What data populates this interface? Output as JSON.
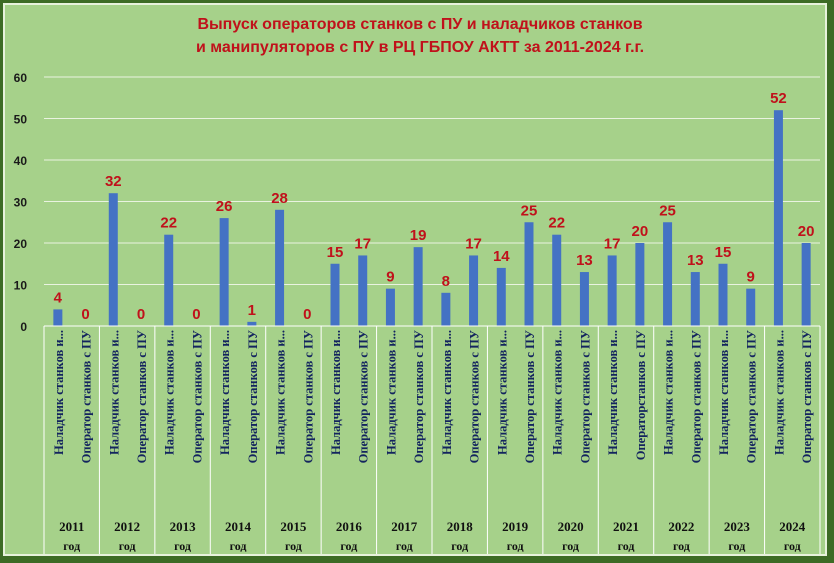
{
  "chart_data": {
    "type": "bar",
    "title_lines": [
      "Выпуск операторов станков с ПУ и наладчиков станков",
      "и манипуляторов с ПУ в РЦ ГБПОУ АКТТ за 2011-2024 г.г."
    ],
    "ylim": [
      0,
      60
    ],
    "yticks": [
      "0",
      "10",
      "20",
      "30",
      "40",
      "50",
      "60"
    ],
    "grid": true,
    "bar_color": "#4472c4",
    "label_color": "#c0111b",
    "categories": [
      "Наладчик станков и...",
      "Оператор станков с ПУ",
      "Наладчик станков и...",
      "Оператор станков с ПУ",
      "Наладчик станков и...",
      "Оператор станков с ПУ",
      "Наладчик станков и...",
      "Оператор станков с ПУ",
      "Наладчик станков и...",
      "Оператор станков с ПУ",
      "Наладчик станков и...",
      "Оператор станков с ПУ",
      "Наладчик станков и...",
      "Оператор станков с ПУ",
      "Наладчик станков и...",
      "Оператор станков с ПУ",
      "Наладчик станков и...",
      "Оператор станков с ПУ",
      "Наладчик станков и...",
      "Оператор станков с ПУ",
      "Наладчик станков и...",
      "Операторстанков с ПУ",
      "Наладчик станков и...",
      "Оператор станков с ПУ",
      "Наладчик станков и...",
      "Оператор станков с ПУ",
      "Наладчик станков и...",
      "Оператор станков с ПУ"
    ],
    "values": [
      4,
      0,
      32,
      0,
      22,
      0,
      26,
      1,
      28,
      0,
      15,
      17,
      9,
      19,
      8,
      17,
      14,
      25,
      22,
      13,
      17,
      20,
      25,
      13,
      15,
      9,
      52,
      20
    ],
    "groups": [
      {
        "year": "2011",
        "unit": "год"
      },
      {
        "year": "2012",
        "unit": "год"
      },
      {
        "year": "2013",
        "unit": "год"
      },
      {
        "year": "2014",
        "unit": "год"
      },
      {
        "year": "2015",
        "unit": "год"
      },
      {
        "year": "2016",
        "unit": "год"
      },
      {
        "year": "2017",
        "unit": "год"
      },
      {
        "year": "2018",
        "unit": "год"
      },
      {
        "year": "2019",
        "unit": "год"
      },
      {
        "year": "2020",
        "unit": "год"
      },
      {
        "year": "2021",
        "unit": "год"
      },
      {
        "year": "2022",
        "unit": "год"
      },
      {
        "year": "2023",
        "unit": "год"
      },
      {
        "year": "2024",
        "unit": "год"
      }
    ]
  }
}
